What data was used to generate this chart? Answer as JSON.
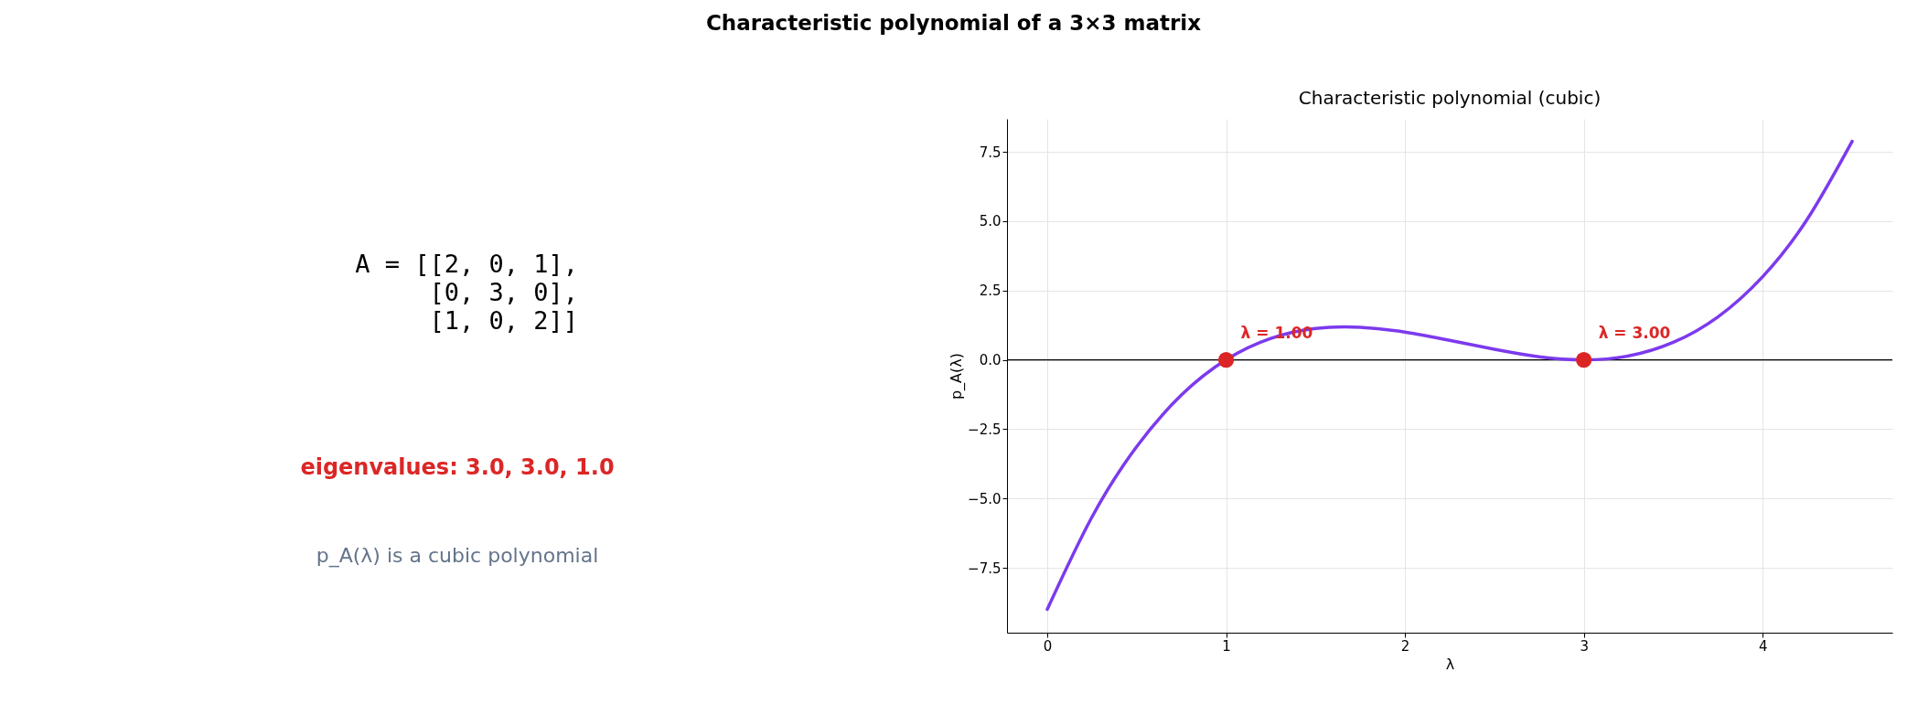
{
  "chart_data": [
    {
      "type": "other",
      "title": "Characteristic polynomial of a 3×3 matrix",
      "annotations": [
        "A = [[2, 0, 1],\n     [0, 3, 0],\n     [1, 0, 2]]",
        "eigenvalues: 3.0, 3.0, 1.0",
        "p_A(λ) is a cubic polynomial"
      ]
    },
    {
      "type": "line",
      "title": "Characteristic polynomial (cubic)",
      "xlabel": "λ",
      "ylabel": "p_A(λ)",
      "xlim": [
        -0.225,
        4.725
      ],
      "ylim": [
        -9.84,
        8.69
      ],
      "xticks": [
        0,
        1,
        2,
        3,
        4
      ],
      "yticks": [
        {
          "value": -7.5,
          "label": "−7.5"
        },
        {
          "value": -5,
          "label": "−5.0"
        },
        {
          "value": -2.5,
          "label": "−2.5"
        },
        {
          "value": 0,
          "label": "0.0"
        },
        {
          "value": 2.5,
          "label": "2.5"
        },
        {
          "value": 5,
          "label": "5.0"
        },
        {
          "value": 7.5,
          "label": "7.5"
        }
      ],
      "grid": true,
      "series": [
        {
          "type": "line",
          "color": "#7c3aed",
          "marker": "none",
          "x": [
            0,
            0.25,
            0.5,
            0.75,
            1,
            1.25,
            1.5,
            1.75,
            2,
            2.25,
            2.5,
            2.75,
            3,
            3.25,
            3.5,
            3.75,
            4,
            4.25,
            4.5
          ],
          "values": [
            -9,
            -5.67,
            -3.13,
            -1.27,
            0,
            0.77,
            1.13,
            1.17,
            1,
            0.7,
            0.38,
            0.11,
            0,
            0.14,
            0.63,
            1.55,
            3,
            5.08,
            7.88
          ]
        },
        {
          "type": "scatter",
          "color": "#dc2626",
          "marker": "circle",
          "x": [
            1,
            3
          ],
          "values": [
            0,
            0
          ]
        }
      ],
      "ref_lines": [
        {
          "axis": "y",
          "value": 0,
          "color": "#000000"
        }
      ],
      "annotations": [
        {
          "text": "λ = 1.00",
          "x": 1,
          "y": 0
        },
        {
          "text": "λ = 3.00",
          "x": 3,
          "y": 0
        }
      ]
    }
  ]
}
